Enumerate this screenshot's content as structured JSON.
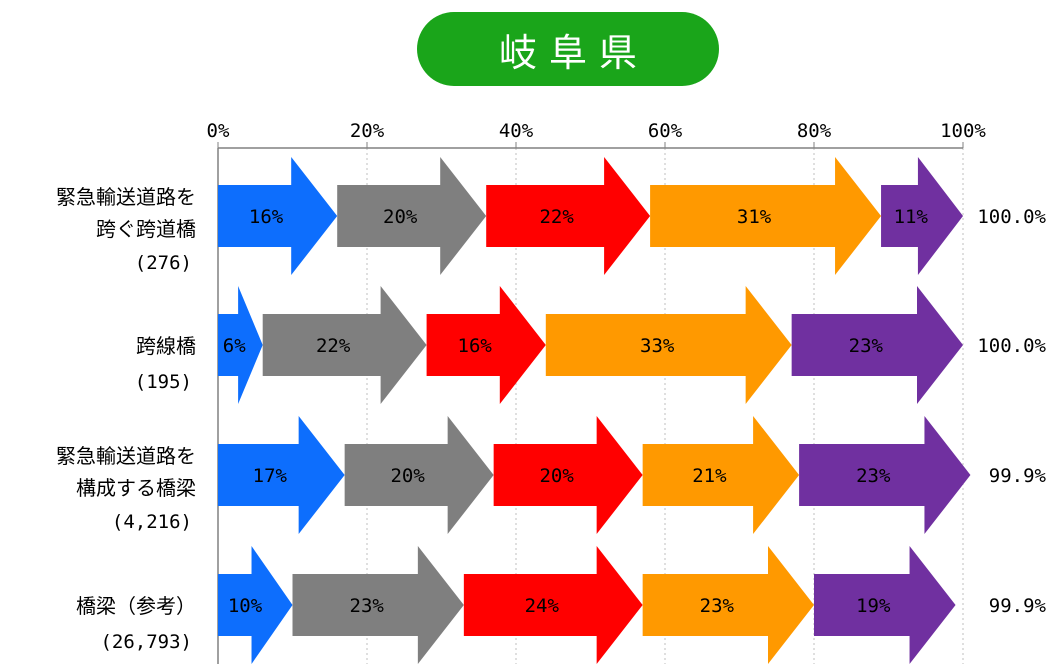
{
  "title": "岐阜県",
  "chart_data": {
    "type": "bar",
    "orientation": "horizontal",
    "stacked": true,
    "xlim": [
      0,
      100
    ],
    "x_ticks": [
      "0%",
      "20%",
      "40%",
      "60%",
      "80%",
      "100%"
    ],
    "grid": true,
    "categories": [
      {
        "label_lines": [
          "緊急輸送道路を",
          "跨ぐ跨道橋"
        ],
        "count": "(276)",
        "total": "100.0%"
      },
      {
        "label_lines": [
          "跨線橋"
        ],
        "count": "(195)",
        "total": "100.0%"
      },
      {
        "label_lines": [
          "緊急輸送道路を",
          "構成する橋梁"
        ],
        "count": "(4,216)",
        "total": "99.9%"
      },
      {
        "label_lines": [
          "橋梁（参考）"
        ],
        "count": "(26,793)",
        "total": "99.9%"
      }
    ],
    "series_colors": [
      "#0d6efd",
      "#7f7f7f",
      "#ff0000",
      "#ff9900",
      "#7030a0"
    ],
    "values": [
      [
        16,
        20,
        22,
        31,
        11
      ],
      [
        6,
        22,
        16,
        33,
        23
      ],
      [
        17,
        20,
        20,
        21,
        23
      ],
      [
        10,
        23,
        24,
        23,
        19
      ]
    ],
    "value_labels": [
      [
        "16%",
        "20%",
        "22%",
        "31%",
        "11%"
      ],
      [
        "6%",
        "22%",
        "16%",
        "33%",
        "23%"
      ],
      [
        "17%",
        "20%",
        "20%",
        "21%",
        "23%"
      ],
      [
        "10%",
        "23%",
        "24%",
        "23%",
        "19%"
      ]
    ]
  }
}
